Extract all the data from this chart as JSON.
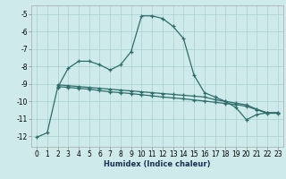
{
  "xlabel": "Humidex (Indice chaleur)",
  "background_color": "#ceeaea",
  "grid_color": "#aacfcf",
  "line_color": "#2e6e6a",
  "xlim": [
    -0.5,
    23.5
  ],
  "ylim": [
    -12.6,
    -4.5
  ],
  "yticks": [
    -5,
    -6,
    -7,
    -8,
    -9,
    -10,
    -11,
    -12
  ],
  "xticks": [
    0,
    1,
    2,
    3,
    4,
    5,
    6,
    7,
    8,
    9,
    10,
    11,
    12,
    13,
    14,
    15,
    16,
    17,
    18,
    19,
    20,
    21,
    22,
    23
  ],
  "line1_x": [
    0,
    1,
    2,
    3,
    4,
    5,
    6,
    7,
    8,
    9,
    10,
    11,
    12,
    13,
    14,
    15,
    16,
    17,
    18,
    19,
    20,
    21,
    22,
    23
  ],
  "line1_y": [
    -12.05,
    -11.8,
    -9.2,
    -8.1,
    -7.7,
    -7.7,
    -7.9,
    -8.2,
    -7.9,
    -7.15,
    -5.1,
    -5.1,
    -5.25,
    -5.7,
    -6.4,
    -8.5,
    -9.5,
    -9.75,
    -10.0,
    -10.35,
    -11.05,
    -10.75,
    -10.65,
    -10.65
  ],
  "line2_x": [
    2,
    3,
    4,
    5,
    6,
    7,
    8,
    9,
    10,
    11,
    12,
    13,
    14,
    15,
    16,
    17,
    18,
    19,
    20,
    21,
    22,
    23
  ],
  "line2_y": [
    -9.05,
    -9.1,
    -9.15,
    -9.2,
    -9.25,
    -9.3,
    -9.35,
    -9.4,
    -9.45,
    -9.5,
    -9.55,
    -9.6,
    -9.65,
    -9.7,
    -9.75,
    -9.9,
    -10.0,
    -10.1,
    -10.2,
    -10.45,
    -10.65,
    -10.65
  ],
  "line3_x": [
    2,
    3,
    4,
    5,
    6,
    7,
    8,
    9,
    10,
    11,
    12,
    13,
    14,
    15,
    16,
    17,
    18,
    19,
    20,
    21,
    22,
    23
  ],
  "line3_y": [
    -9.15,
    -9.2,
    -9.25,
    -9.3,
    -9.38,
    -9.45,
    -9.5,
    -9.55,
    -9.62,
    -9.68,
    -9.75,
    -9.8,
    -9.85,
    -9.92,
    -9.98,
    -10.05,
    -10.12,
    -10.18,
    -10.28,
    -10.48,
    -10.68,
    -10.68
  ],
  "xlabel_fontsize": 6,
  "tick_fontsize": 5.5,
  "linewidth": 0.9,
  "markersize": 3.5
}
